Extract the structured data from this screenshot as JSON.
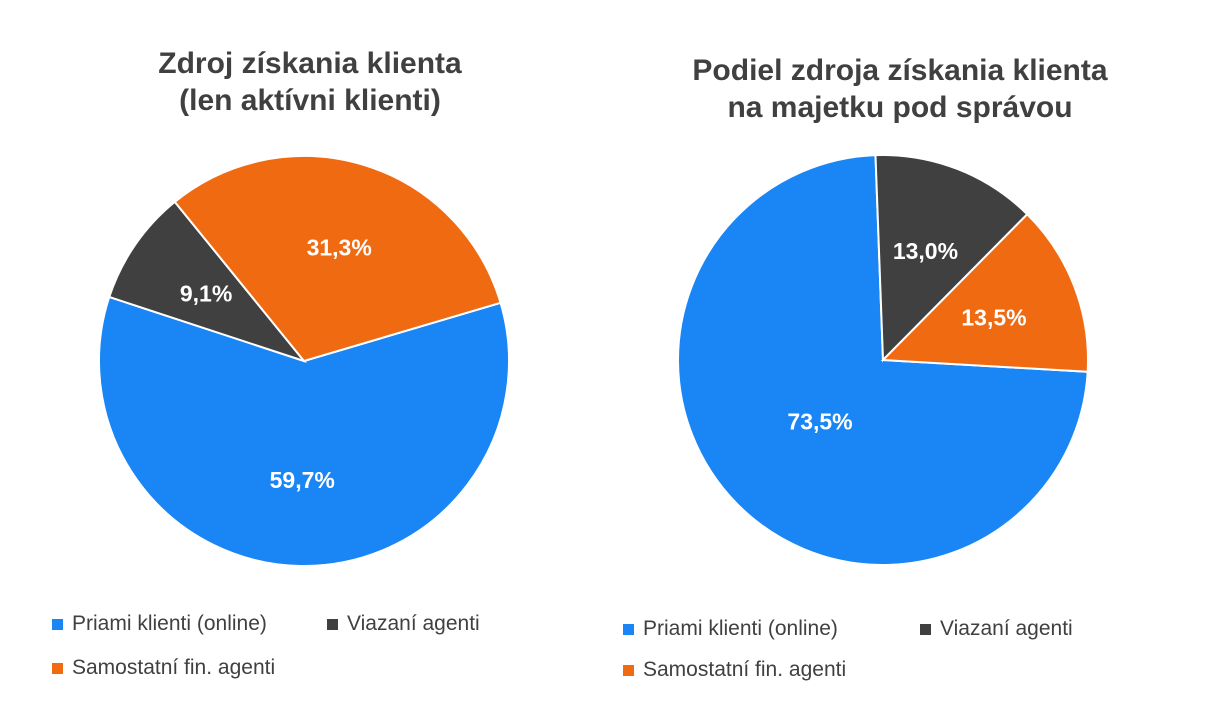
{
  "colors": {
    "direct": "#1A85F5",
    "tied": "#404040",
    "independent": "#F06A12"
  },
  "chart_data": [
    {
      "type": "pie",
      "title_lines": [
        "Zdroj získania klienta",
        "(len aktívni klienti)"
      ],
      "categories": [
        "Priami klienti (online)",
        "Viazaní agenti",
        "Samostatní fin. agenti"
      ],
      "values": [
        59.7,
        9.1,
        31.3
      ],
      "labels": [
        "59,7%",
        "9,1%",
        "31,3%"
      ],
      "start_angle_deg": 73.5,
      "legend": "bottom"
    },
    {
      "type": "pie",
      "title_lines": [
        "Podiel zdroja získania klienta",
        "na majetku pod správou"
      ],
      "categories": [
        "Priami klienti (online)",
        "Viazaní agenti",
        "Samostatní fin. agenti"
      ],
      "values": [
        73.5,
        13.0,
        13.5
      ],
      "labels": [
        "73,5%",
        "13,0%",
        "13,5%"
      ],
      "start_angle_deg": 93.3,
      "legend": "bottom"
    }
  ]
}
